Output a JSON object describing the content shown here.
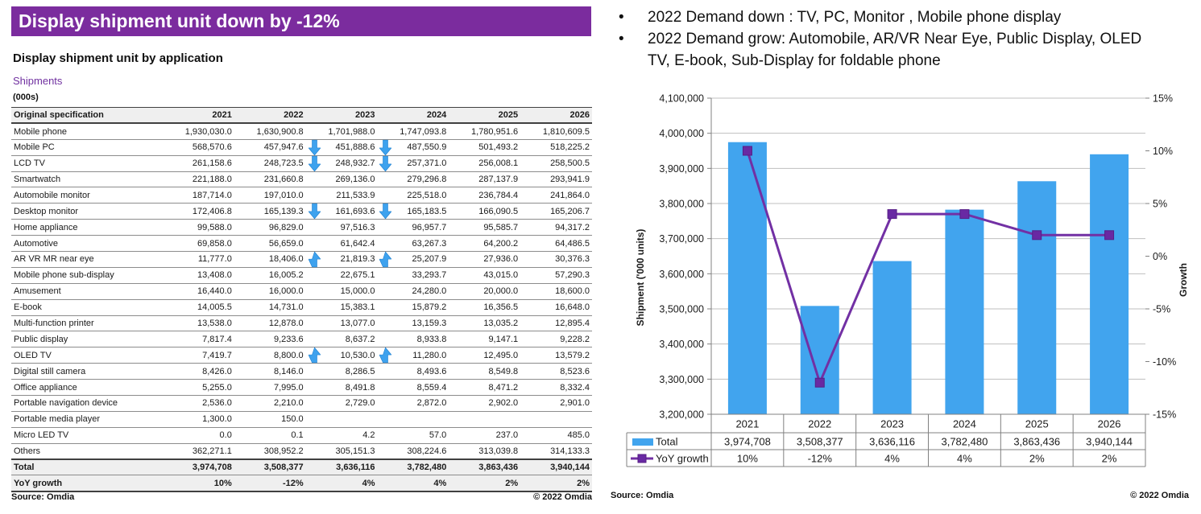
{
  "header": {
    "title": "Display shipment unit down by -12%",
    "bar_color": "#7B2C9E"
  },
  "left": {
    "subtitle": "Display shipment unit by application",
    "series_label": "Shipments",
    "units_label": "(000s)",
    "table": {
      "columns": [
        "Original specification",
        "2021",
        "2022",
        "2023",
        "2024",
        "2025",
        "2026"
      ],
      "rows": [
        {
          "label": "Mobile phone",
          "values": [
            "1,930,030.0",
            "1,630,900.8",
            "1,701,988.0",
            "1,747,093.8",
            "1,780,951.6",
            "1,810,609.5"
          ]
        },
        {
          "label": "Mobile PC",
          "values": [
            "568,570.6",
            "457,947.6",
            "451,888.6",
            "487,550.9",
            "501,493.2",
            "518,225.2"
          ],
          "arrow": "down"
        },
        {
          "label": "LCD TV",
          "values": [
            "261,158.6",
            "248,723.5",
            "248,932.7",
            "257,371.0",
            "256,008.1",
            "258,500.5"
          ],
          "arrow": "down"
        },
        {
          "label": "Smartwatch",
          "values": [
            "221,188.0",
            "231,660.8",
            "269,136.0",
            "279,296.8",
            "287,137.9",
            "293,941.9"
          ]
        },
        {
          "label": "Automobile monitor",
          "values": [
            "187,714.0",
            "197,010.0",
            "211,533.9",
            "225,518.0",
            "236,784.4",
            "241,864.0"
          ]
        },
        {
          "label": "Desktop monitor",
          "values": [
            "172,406.8",
            "165,139.3",
            "161,693.6",
            "165,183.5",
            "166,090.5",
            "165,206.7"
          ],
          "arrow": "down"
        },
        {
          "label": "Home appliance",
          "values": [
            "99,588.0",
            "96,829.0",
            "97,516.3",
            "96,957.7",
            "95,585.7",
            "94,317.2"
          ]
        },
        {
          "label": "Automotive",
          "values": [
            "69,858.0",
            "56,659.0",
            "61,642.4",
            "63,267.3",
            "64,200.2",
            "64,486.5"
          ]
        },
        {
          "label": "AR VR MR near eye",
          "values": [
            "11,777.0",
            "18,406.0",
            "21,819.3",
            "25,207.9",
            "27,936.0",
            "30,376.3"
          ],
          "arrow": "up"
        },
        {
          "label": "Mobile phone sub-display",
          "values": [
            "13,408.0",
            "16,005.2",
            "22,675.1",
            "33,293.7",
            "43,015.0",
            "57,290.3"
          ]
        },
        {
          "label": "Amusement",
          "values": [
            "16,440.0",
            "16,000.0",
            "15,000.0",
            "24,280.0",
            "20,000.0",
            "18,600.0"
          ]
        },
        {
          "label": "E-book",
          "values": [
            "14,005.5",
            "14,731.0",
            "15,383.1",
            "15,879.2",
            "16,356.5",
            "16,648.0"
          ]
        },
        {
          "label": "Multi-function printer",
          "values": [
            "13,538.0",
            "12,878.0",
            "13,077.0",
            "13,159.3",
            "13,035.2",
            "12,895.4"
          ]
        },
        {
          "label": "Public display",
          "values": [
            "7,817.4",
            "9,233.6",
            "8,637.2",
            "8,933.8",
            "9,147.1",
            "9,228.2"
          ]
        },
        {
          "label": "OLED TV",
          "values": [
            "7,419.7",
            "8,800.0",
            "10,530.0",
            "11,280.0",
            "12,495.0",
            "13,579.2"
          ],
          "arrow": "up"
        },
        {
          "label": "Digital still camera",
          "values": [
            "8,426.0",
            "8,146.0",
            "8,286.5",
            "8,493.6",
            "8,549.8",
            "8,523.6"
          ]
        },
        {
          "label": "Office appliance",
          "values": [
            "5,255.0",
            "7,995.0",
            "8,491.8",
            "8,559.4",
            "8,471.2",
            "8,332.4"
          ]
        },
        {
          "label": "Portable navigation device",
          "values": [
            "2,536.0",
            "2,210.0",
            "2,729.0",
            "2,872.0",
            "2,902.0",
            "2,901.0"
          ]
        },
        {
          "label": "Portable media player",
          "values": [
            "1,300.0",
            "150.0",
            "",
            "",
            "",
            ""
          ]
        },
        {
          "label": "Micro LED TV",
          "values": [
            "0.0",
            "0.1",
            "4.2",
            "57.0",
            "237.0",
            "485.0"
          ]
        },
        {
          "label": "Others",
          "values": [
            "362,271.1",
            "308,952.2",
            "305,151.3",
            "308,224.6",
            "313,039.8",
            "314,133.3"
          ]
        },
        {
          "label": "Total",
          "values": [
            "3,974,708",
            "3,508,377",
            "3,636,116",
            "3,782,480",
            "3,863,436",
            "3,940,144"
          ],
          "style": "emph-first"
        },
        {
          "label": "YoY growth",
          "values": [
            "10%",
            "-12%",
            "4%",
            "4%",
            "2%",
            "2%"
          ],
          "style": "emph-last"
        }
      ],
      "arrow_color": "#3EA2EE",
      "arrow_stroke": "#1E7FD0"
    },
    "source": "Source: Omdia",
    "copyright": "© 2022 Omdia"
  },
  "right": {
    "bullets": [
      "2022 Demand down : TV, PC, Monitor , Mobile phone display",
      "2022 Demand grow: Automobile, AR/VR Near Eye, Public Display, OLED TV, E-book, Sub-Display for foldable phone"
    ],
    "bullet_glyph": "•",
    "source": "Source: Omdia",
    "copyright": "© 2022 Omdia"
  },
  "chart_data": {
    "type": "bar+line combo",
    "categories": [
      "2021",
      "2022",
      "2023",
      "2024",
      "2025",
      "2026"
    ],
    "series": [
      {
        "name": "Total",
        "type": "bar",
        "axis": "left",
        "color": "#41A4EE",
        "values": [
          3974708,
          3508377,
          3636116,
          3782480,
          3863436,
          3940144
        ],
        "display_values": [
          "3,974,708",
          "3,508,377",
          "3,636,116",
          "3,782,480",
          "3,863,436",
          "3,940,144"
        ]
      },
      {
        "name": "YoY growth",
        "type": "line",
        "axis": "right",
        "color": "#7230A4",
        "marker_color": "#6929A3",
        "values": [
          10,
          -12,
          4,
          4,
          2,
          2
        ],
        "display_values": [
          "10%",
          "-12%",
          "4%",
          "4%",
          "2%",
          "2%"
        ]
      }
    ],
    "left_axis": {
      "label": "Shipment ('000 units)",
      "min": 3200000,
      "max": 4100000,
      "tick_step": 100000,
      "ticks": [
        "3,200,000",
        "3,300,000",
        "3,400,000",
        "3,500,000",
        "3,600,000",
        "3,700,000",
        "3,800,000",
        "3,900,000",
        "4,000,000",
        "4,100,000"
      ]
    },
    "right_axis": {
      "label": "Growth",
      "min": -15,
      "max": 15,
      "tick_step": 5,
      "ticks": [
        "-15%",
        "-10%",
        "-5%",
        "0%",
        "5%",
        "10%",
        "15%"
      ]
    },
    "grid": true,
    "legend_position": "data-table-below-chart",
    "gridline_color": "#bfbfbf",
    "axis_color": "#808080"
  }
}
